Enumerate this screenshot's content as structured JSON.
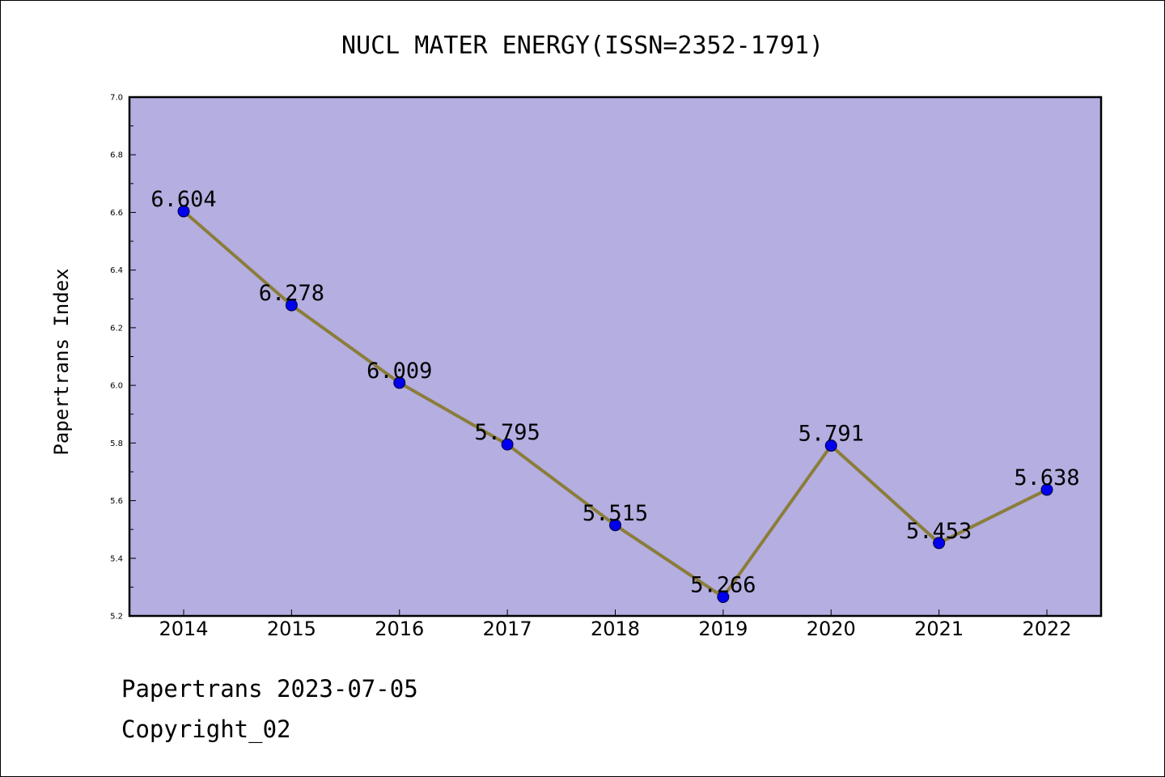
{
  "chart_data": {
    "type": "line",
    "title": "NUCL MATER ENERGY(ISSN=2352-1791)",
    "ylabel": "Papertrans Index",
    "xlabel": "",
    "categories": [
      "2014",
      "2015",
      "2016",
      "2017",
      "2018",
      "2019",
      "2020",
      "2021",
      "2022"
    ],
    "values": [
      6.604,
      6.278,
      6.009,
      5.795,
      5.515,
      5.266,
      5.791,
      5.453,
      5.638
    ],
    "value_labels": [
      "6.604",
      "6.278",
      "6.009",
      "5.795",
      "5.515",
      "5.266",
      "5.791",
      "5.453",
      "5.638"
    ],
    "ylim": [
      5.2,
      7.0
    ],
    "yticks": [
      "5.2",
      "5.4",
      "5.6",
      "5.8",
      "6.0",
      "6.2",
      "6.4",
      "6.6",
      "6.8",
      "7.0"
    ],
    "grid": false,
    "legend": "none",
    "colors": {
      "plot_background": "#b4aee1",
      "line": "#8b7d3a",
      "marker": "#0000ee",
      "axes": "#000000"
    }
  },
  "footer": {
    "line1": "Papertrans 2023-07-05",
    "line2": "Copyright_02"
  }
}
